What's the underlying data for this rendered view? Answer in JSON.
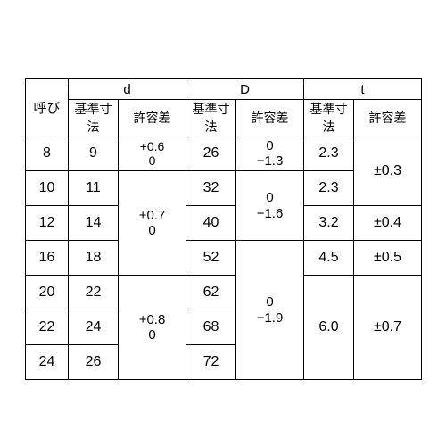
{
  "border_color": "#000000",
  "background_color": "#ffffff",
  "header": {
    "yobi": "呼び",
    "groups": [
      "d",
      "D",
      "t"
    ],
    "sub": {
      "kijun": "基準寸法",
      "kyoyo": "許容差"
    }
  },
  "rows": {
    "yobi": [
      "8",
      "10",
      "12",
      "16",
      "20",
      "22",
      "24"
    ],
    "d_kijun": [
      "9",
      "11",
      "14",
      "18",
      "22",
      "24",
      "26"
    ],
    "D_kijun": [
      "26",
      "32",
      "40",
      "52",
      "62",
      "68",
      "72"
    ],
    "t_kijun_8": "2.3",
    "t_kijun_10": "2.3",
    "t_kijun_12": "3.2",
    "t_kijun_16": "4.5",
    "t_kijun_20_24": "6.0"
  },
  "tol": {
    "d_8": "+0.6\n0",
    "d_10_16": "+0.7\n0",
    "d_20_24": "+0.8\n0",
    "D_8": "0\n−1.3",
    "D_10_12": "0\n−1.6",
    "D_16_24": "0\n−1.9",
    "t_8_10": "±0.3",
    "t_12": "±0.4",
    "t_16": "±0.5",
    "t_20_24": "±0.7"
  }
}
